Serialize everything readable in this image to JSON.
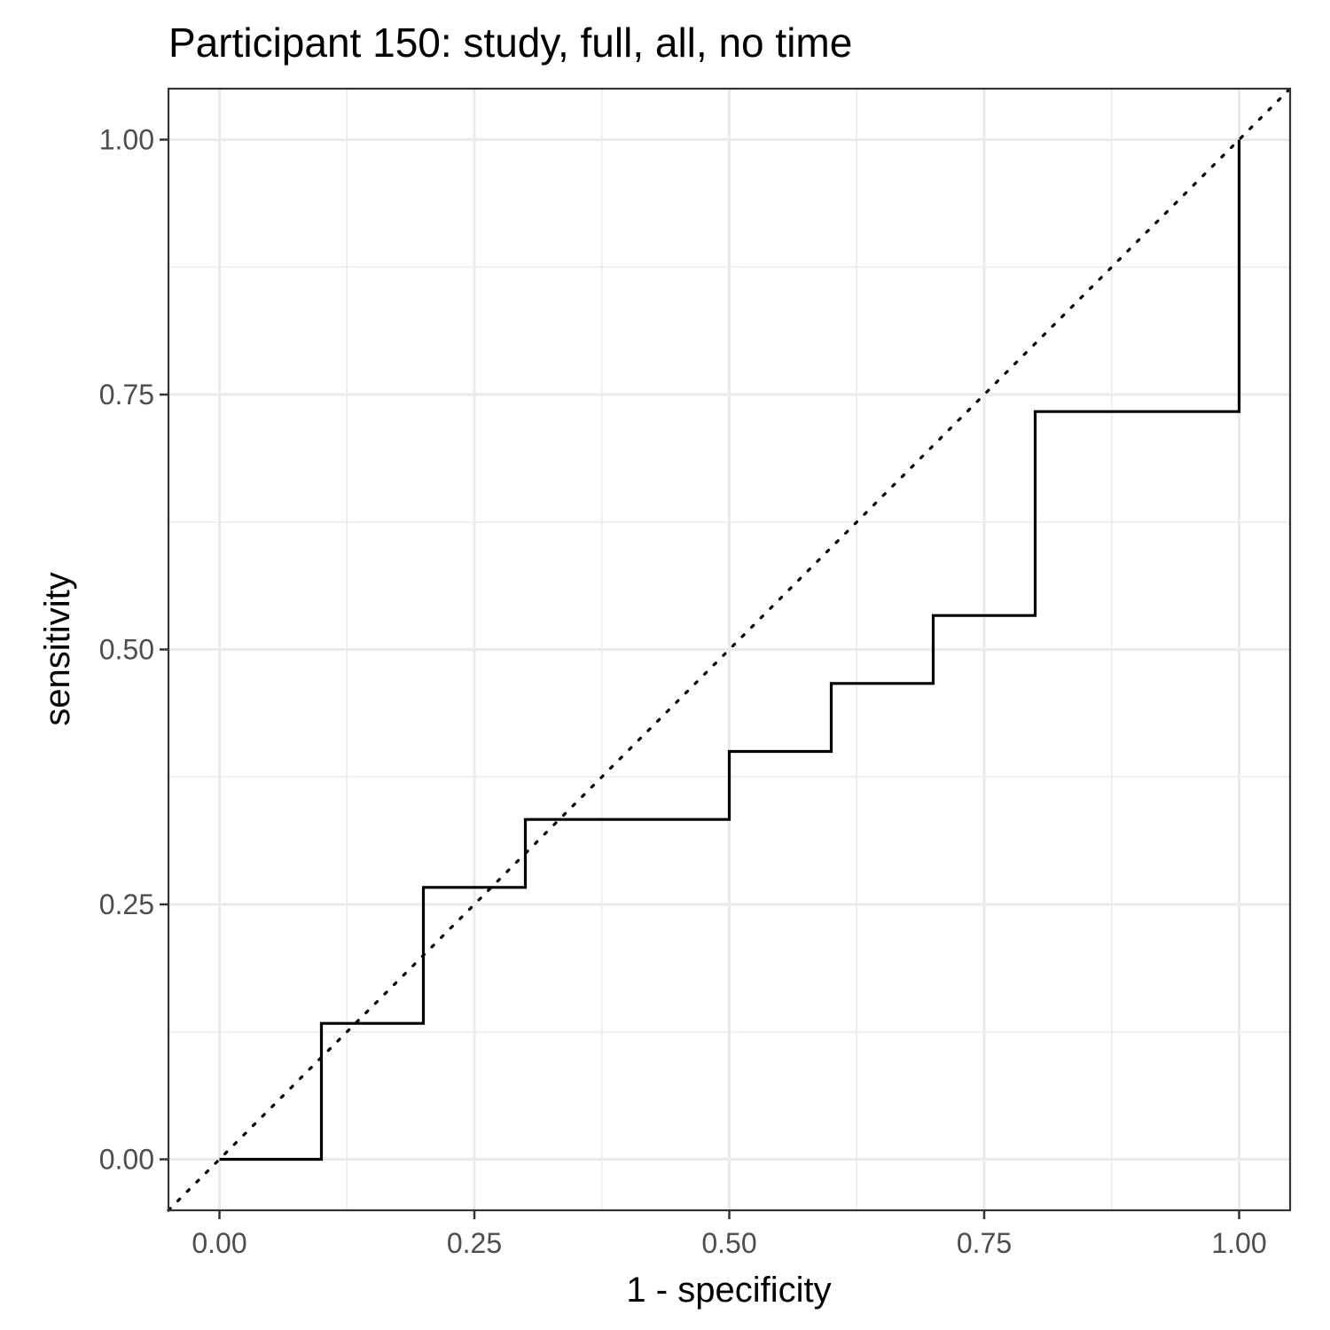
{
  "chart_data": {
    "type": "line",
    "title": "Participant 150: study, full, all, no time",
    "xlabel": "1 - specificity",
    "ylabel": "sensitivity",
    "xlim": [
      -0.05,
      1.05
    ],
    "ylim": [
      -0.05,
      1.05
    ],
    "x_ticks": [
      0,
      0.25,
      0.5,
      0.75,
      1
    ],
    "x_tick_labels": [
      "0.00",
      "0.25",
      "0.50",
      "0.75",
      "1.00"
    ],
    "y_ticks": [
      0,
      0.25,
      0.5,
      0.75,
      1
    ],
    "y_tick_labels": [
      "0.00",
      "0.25",
      "0.50",
      "0.75",
      "1.00"
    ],
    "grid": true,
    "series": [
      {
        "style": "step",
        "color": "#000000",
        "points": [
          [
            0.0,
            0.0
          ],
          [
            0.1,
            0.0
          ],
          [
            0.1,
            0.1333
          ],
          [
            0.2,
            0.1333
          ],
          [
            0.2,
            0.2667
          ],
          [
            0.3,
            0.2667
          ],
          [
            0.3,
            0.3333
          ],
          [
            0.5,
            0.3333
          ],
          [
            0.5,
            0.4
          ],
          [
            0.6,
            0.4
          ],
          [
            0.6,
            0.4667
          ],
          [
            0.7,
            0.4667
          ],
          [
            0.7,
            0.5333
          ],
          [
            0.8,
            0.5333
          ],
          [
            0.8,
            0.7333
          ],
          [
            1.0,
            0.7333
          ],
          [
            1.0,
            1.0
          ]
        ]
      }
    ],
    "reference_line": {
      "slope": 1,
      "intercept": 0,
      "style": "dotted",
      "color": "#000000"
    }
  }
}
